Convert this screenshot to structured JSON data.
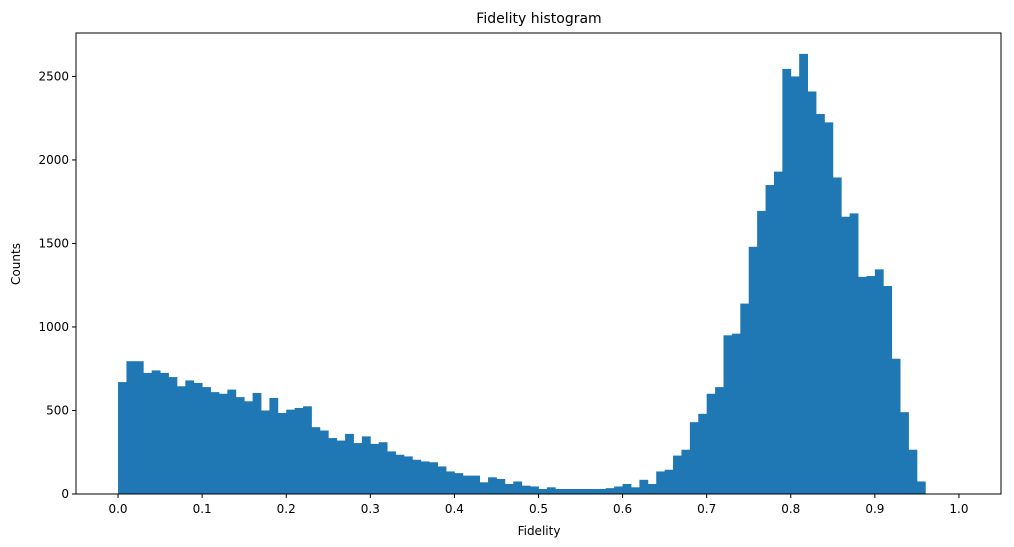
{
  "chart_data": {
    "type": "bar",
    "title": "Fidelity histogram",
    "xlabel": "Fidelity",
    "ylabel": "Counts",
    "xlim": [
      -0.05,
      1.05
    ],
    "ylim": [
      0,
      2760
    ],
    "xticks": [
      "0.0",
      "0.1",
      "0.2",
      "0.3",
      "0.4",
      "0.5",
      "0.6",
      "0.7",
      "0.8",
      "0.9",
      "1.0"
    ],
    "yticks": [
      "0",
      "500",
      "1000",
      "1500",
      "2000",
      "2500"
    ],
    "bar_color": "#1f77b4",
    "bin_width": 0.01,
    "bin_start": 0.0,
    "series": [
      {
        "values": [
          670,
          795,
          795,
          725,
          740,
          725,
          700,
          645,
          680,
          665,
          640,
          610,
          600,
          625,
          580,
          555,
          605,
          500,
          575,
          485,
          505,
          515,
          525,
          400,
          380,
          335,
          320,
          360,
          305,
          345,
          300,
          310,
          255,
          235,
          225,
          205,
          195,
          190,
          165,
          135,
          125,
          110,
          110,
          70,
          100,
          90,
          60,
          75,
          50,
          45,
          30,
          40,
          30,
          30,
          30,
          30,
          30,
          30,
          35,
          45,
          60,
          40,
          85,
          60,
          135,
          145,
          230,
          265,
          430,
          480,
          600,
          640,
          950,
          960,
          1140,
          1480,
          1695,
          1850,
          1930,
          2545,
          2500,
          2635,
          2410,
          2275,
          2225,
          1895,
          1660,
          1680,
          1300,
          1305,
          1345,
          1245,
          810,
          490,
          265,
          75
        ]
      }
    ]
  }
}
